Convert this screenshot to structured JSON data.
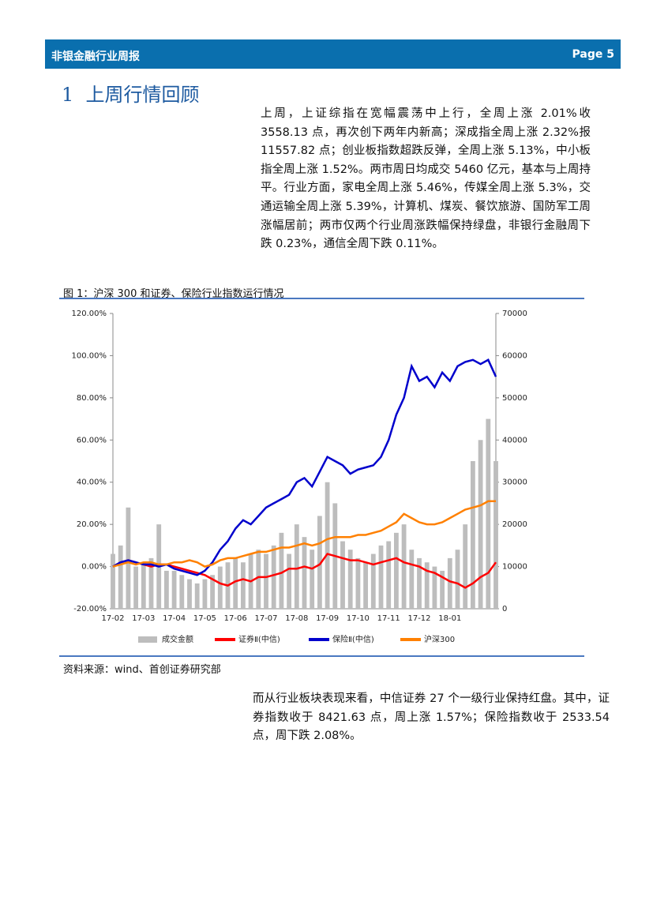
{
  "header": {
    "title": "非银金融行业周报",
    "page": "Page 5"
  },
  "section": {
    "number": "1",
    "title": "上周行情回顾"
  },
  "paragraphs": [
    "上周，上证综指在宽幅震荡中上行，全周上涨 2.01%收 3558.13 点，再次创下两年内新高；深成指全周上涨 2.32%报 11557.82 点；创业板指数超跌反弹，全周上涨 5.13%，中小板指全周上涨 1.52%。两市周日均成交 5460 亿元，基本与上周持平。行业方面，家电全周上涨 5.46%，传媒全周上涨 5.3%，交通运输全周上涨 5.39%，计算机、煤炭、餐饮旅游、国防军工周涨幅居前；两市仅两个行业周涨跌幅保持绿盘，非银行金融周下跌 0.23%，通信全周下跌 0.11%。",
    "而从行业板块表现来看，中信证券 27 个一级行业保持红盘。其中，证券指数收于 8421.63 点，周上涨 1.57%；保险指数收于 2533.54 点，周下跌 2.08%。"
  ],
  "figure": {
    "caption": "图 1：沪深 300 和证券、保险行业指数运行情况",
    "source": "资料来源：wind、首创证券研究部"
  },
  "chart_data": {
    "type": "combo",
    "categories": [
      "17-02",
      null,
      null,
      null,
      "17-03",
      null,
      null,
      null,
      "17-04",
      null,
      null,
      null,
      "17-05",
      null,
      null,
      null,
      "17-06",
      null,
      null,
      null,
      "17-07",
      null,
      null,
      null,
      "17-08",
      null,
      null,
      null,
      "17-09",
      null,
      null,
      null,
      "17-10",
      null,
      null,
      null,
      "17-11",
      null,
      null,
      null,
      "17-12",
      null,
      null,
      null,
      "18-01",
      null,
      null,
      null,
      null,
      null,
      null
    ],
    "ylim": [
      -20,
      120
    ],
    "yticks": [
      {
        "value": -20,
        "label": "-20.00%"
      },
      {
        "value": 0,
        "label": "0.00%"
      },
      {
        "value": 20,
        "label": "20.00%"
      },
      {
        "value": 40,
        "label": "40.00%"
      },
      {
        "value": 60,
        "label": "60.00%"
      },
      {
        "value": 80,
        "label": "80.00%"
      },
      {
        "value": 100,
        "label": "100.00%"
      },
      {
        "value": 120,
        "label": "120.00%"
      }
    ],
    "y2lim": [
      0,
      70000
    ],
    "y2ticks": [
      0,
      10000,
      20000,
      30000,
      40000,
      50000,
      60000,
      70000
    ],
    "series": [
      {
        "name": "成交金额",
        "type": "bar",
        "axis": "y2",
        "color": "#bdbdbd",
        "values": [
          13000,
          15000,
          24000,
          10000,
          11000,
          12000,
          20000,
          9000,
          9000,
          8000,
          7000,
          6000,
          7000,
          8000,
          10000,
          11000,
          12000,
          11000,
          13000,
          14000,
          13000,
          15000,
          18000,
          13000,
          20000,
          17000,
          14000,
          22000,
          30000,
          25000,
          16000,
          14000,
          12000,
          11000,
          13000,
          15000,
          16000,
          18000,
          20000,
          14000,
          12000,
          11000,
          10000,
          9000,
          12000,
          14000,
          20000,
          35000,
          40000,
          45000,
          35000
        ]
      },
      {
        "name": "证券Ⅱ(中信)",
        "type": "line",
        "color": "#ff0000",
        "values": [
          0,
          2,
          3,
          2,
          1,
          0,
          1,
          1,
          0,
          -1,
          -2,
          -3,
          -4,
          -6,
          -8,
          -9,
          -7,
          -6,
          -7,
          -5,
          -5,
          -4,
          -3,
          -1,
          -1,
          0,
          -1,
          1,
          6,
          5,
          4,
          3,
          3,
          2,
          1,
          2,
          3,
          4,
          2,
          1,
          0,
          -2,
          -3,
          -5,
          -7,
          -8,
          -10,
          -8,
          -5,
          -3,
          2
        ]
      },
      {
        "name": "保险Ⅱ(中信)",
        "type": "line",
        "color": "#0000cc",
        "values": [
          0,
          2,
          3,
          2,
          1,
          1,
          0,
          1,
          -1,
          -2,
          -3,
          -4,
          -2,
          2,
          8,
          12,
          18,
          22,
          20,
          24,
          28,
          30,
          32,
          34,
          40,
          42,
          38,
          45,
          52,
          50,
          48,
          44,
          46,
          47,
          48,
          52,
          60,
          72,
          80,
          95,
          88,
          90,
          85,
          92,
          88,
          95,
          97,
          98,
          96,
          98,
          90
        ]
      },
      {
        "name": "沪深300",
        "type": "line",
        "color": "#ff8000",
        "values": [
          0,
          1,
          2,
          1,
          2,
          2,
          1,
          1,
          2,
          2,
          3,
          2,
          0,
          1,
          3,
          4,
          4,
          5,
          6,
          7,
          7,
          8,
          9,
          9,
          10,
          11,
          10,
          11,
          13,
          14,
          14,
          14,
          15,
          15,
          16,
          17,
          19,
          21,
          25,
          23,
          21,
          20,
          20,
          21,
          23,
          25,
          27,
          28,
          29,
          31,
          31
        ]
      }
    ]
  }
}
